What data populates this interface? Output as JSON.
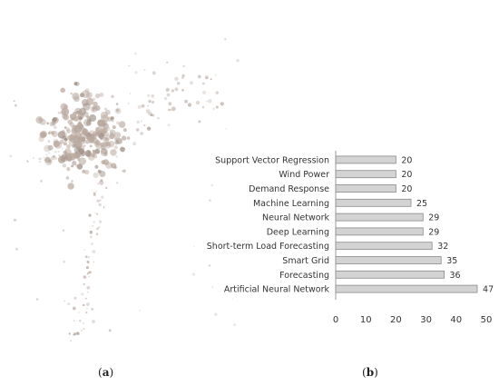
{
  "panels": {
    "a": {
      "label_open": "(",
      "label_letter": "a",
      "label_close": ")"
    },
    "b": {
      "label_open": "(",
      "label_letter": "b",
      "label_close": ")"
    }
  },
  "colors": {
    "scatter_point": "#b9a89e",
    "scatter_point_dark": "#9c8b82",
    "bar_fill": "#d3d3d3",
    "bar_stroke": "#8a8a8a",
    "axis": "#9a9a9a",
    "text": "#333333"
  },
  "chart_data": [
    {
      "type": "scatter",
      "title": "",
      "xlabel": "",
      "ylabel": "",
      "grid": false,
      "description_shape": "dense cluster"
    },
    {
      "type": "bar",
      "orientation": "horizontal",
      "title": "",
      "xlabel": "",
      "ylabel": "",
      "categories": [
        "Support Vector Regression",
        "Wind Power",
        "Demand Response",
        "Machine Learning",
        "Neural Network",
        "Deep Learning",
        "Short-term Load Forecasting",
        "Smart Grid",
        "Forecasting",
        "Artificial Neural Network"
      ],
      "values": [
        20,
        20,
        20,
        25,
        29,
        29,
        32,
        35,
        36,
        47
      ],
      "xlim": [
        0,
        50
      ],
      "xticks": [
        0,
        10,
        20,
        30,
        40,
        50
      ],
      "grid": false
    }
  ]
}
